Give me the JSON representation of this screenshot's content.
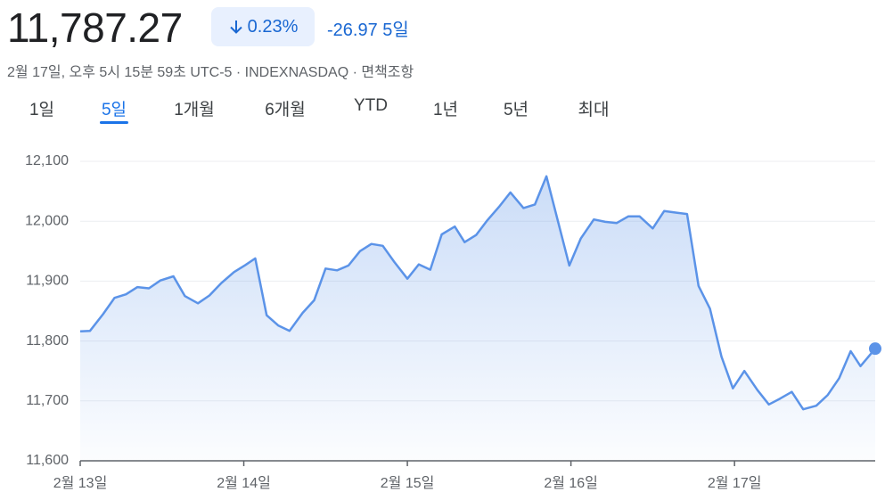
{
  "header": {
    "price": "11,787.27",
    "change_percent": "0.23%",
    "change": "-26.97",
    "period": "5일",
    "info": "2월 17일, 오후 5시 15분 59초 UTC-5 · INDEXNASDAQ · 면책조항"
  },
  "tabs": {
    "items": [
      "1일",
      "5일",
      "1개월",
      "6개월",
      "YTD",
      "1년",
      "5년",
      "최대"
    ],
    "selected": 1
  },
  "chart_data": {
    "type": "line",
    "color": "#5b93e8",
    "grid": true,
    "x": [
      0,
      0.06,
      0.14,
      0.21,
      0.28,
      0.35,
      0.42,
      0.49,
      0.57,
      0.64,
      0.72,
      0.79,
      0.86,
      0.94,
      1.01,
      1.07,
      1.14,
      1.21,
      1.28,
      1.36,
      1.43,
      1.5,
      1.57,
      1.64,
      1.71,
      1.78,
      1.85,
      1.92,
      2.0,
      2.07,
      2.14,
      2.21,
      2.29,
      2.35,
      2.42,
      2.49,
      2.56,
      2.63,
      2.71,
      2.78,
      2.85,
      2.99,
      3.06,
      3.14,
      3.21,
      3.28,
      3.35,
      3.42,
      3.5,
      3.57,
      3.65,
      3.71,
      3.78,
      3.85,
      3.92,
      3.99,
      4.06,
      4.14,
      4.21,
      4.28,
      4.35,
      4.42,
      4.5,
      4.57,
      4.64,
      4.71,
      4.77,
      4.86
    ],
    "values": [
      11816,
      11817,
      11845,
      11872,
      11878,
      11890,
      11888,
      11901,
      11908,
      11875,
      11863,
      11876,
      11896,
      11915,
      11927,
      11938,
      11843,
      11826,
      11817,
      11847,
      11868,
      11921,
      11918,
      11926,
      11950,
      11962,
      11959,
      11932,
      11904,
      11928,
      11919,
      11978,
      11991,
      11965,
      11977,
      12002,
      12024,
      12048,
      12022,
      12028,
      12075,
      11926,
      11971,
      12003,
      11999,
      11997,
      12008,
      12008,
      11988,
      12017,
      12014,
      12012,
      11892,
      11854,
      11774,
      11721,
      11750,
      11718,
      11694,
      11704,
      11715,
      11686,
      11692,
      11710,
      11738,
      11783,
      11758,
      11787.27
    ],
    "xlim": [
      0,
      4.86
    ],
    "xticks": [
      {
        "value": 0,
        "label": "2월 13일"
      },
      {
        "value": 1,
        "label": "2월 14일"
      },
      {
        "value": 2,
        "label": "2월 15일"
      },
      {
        "value": 3,
        "label": "2월 16일"
      },
      {
        "value": 4,
        "label": "2월 17일"
      }
    ],
    "ylim": [
      11600,
      12100
    ],
    "yticks": [
      {
        "value": 11600,
        "label": "11,600"
      },
      {
        "value": 11700,
        "label": "11,700"
      },
      {
        "value": 11800,
        "label": "11,800"
      },
      {
        "value": 11900,
        "label": "11,900"
      },
      {
        "value": 12000,
        "label": "12,000"
      },
      {
        "value": 12100,
        "label": "12,100"
      }
    ]
  }
}
